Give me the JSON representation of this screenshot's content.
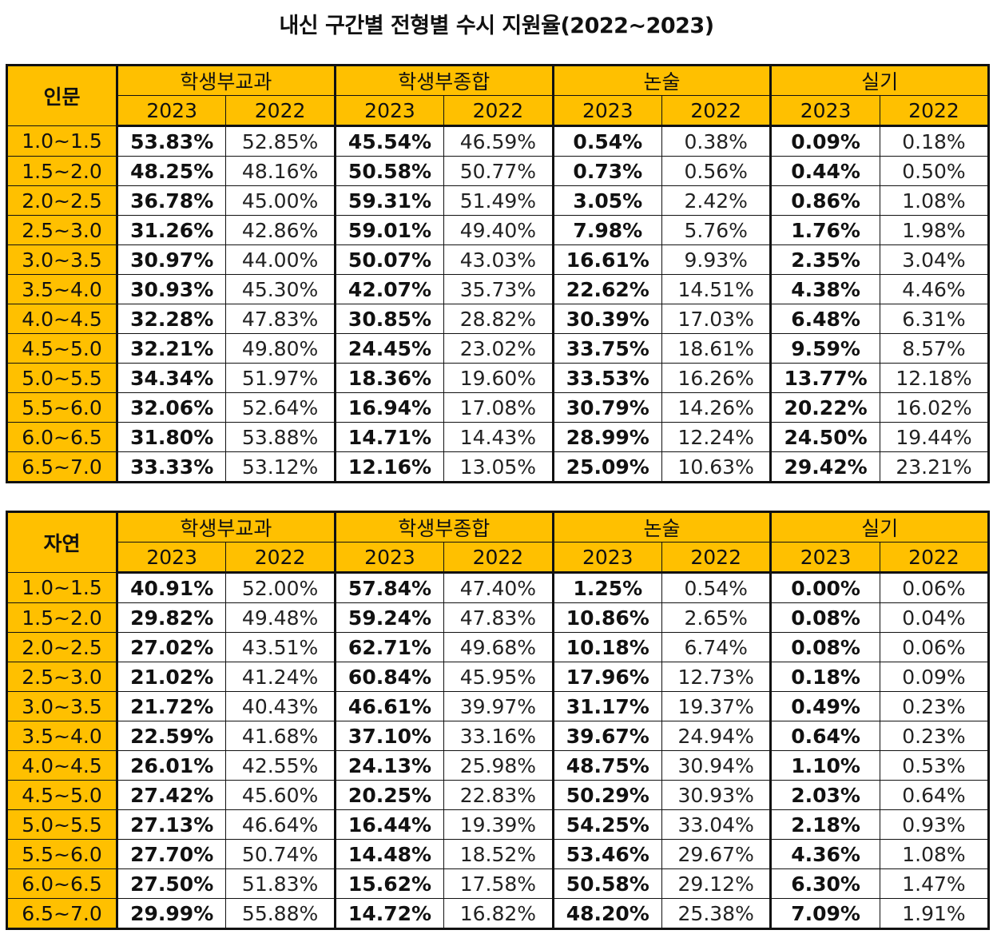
{
  "title": "내신 구간별 전형별 수시 지원율(2022~2023)",
  "colors": {
    "header": "#ffc000",
    "corner": "#92d050",
    "border": "#111111"
  },
  "chart_data": {
    "type": "table",
    "groups": [
      "학생부교과",
      "학생부종합",
      "논술",
      "실기"
    ],
    "years": [
      "2023",
      "2022"
    ],
    "tables": [
      {
        "label": "인문",
        "rows": [
          {
            "band": "1.0~1.5",
            "values": [
              "53.83%",
              "52.85%",
              "45.54%",
              "46.59%",
              "0.54%",
              "0.38%",
              "0.09%",
              "0.18%"
            ]
          },
          {
            "band": "1.5~2.0",
            "values": [
              "48.25%",
              "48.16%",
              "50.58%",
              "50.77%",
              "0.73%",
              "0.56%",
              "0.44%",
              "0.50%"
            ]
          },
          {
            "band": "2.0~2.5",
            "values": [
              "36.78%",
              "45.00%",
              "59.31%",
              "51.49%",
              "3.05%",
              "2.42%",
              "0.86%",
              "1.08%"
            ]
          },
          {
            "band": "2.5~3.0",
            "values": [
              "31.26%",
              "42.86%",
              "59.01%",
              "49.40%",
              "7.98%",
              "5.76%",
              "1.76%",
              "1.98%"
            ]
          },
          {
            "band": "3.0~3.5",
            "values": [
              "30.97%",
              "44.00%",
              "50.07%",
              "43.03%",
              "16.61%",
              "9.93%",
              "2.35%",
              "3.04%"
            ]
          },
          {
            "band": "3.5~4.0",
            "values": [
              "30.93%",
              "45.30%",
              "42.07%",
              "35.73%",
              "22.62%",
              "14.51%",
              "4.38%",
              "4.46%"
            ]
          },
          {
            "band": "4.0~4.5",
            "values": [
              "32.28%",
              "47.83%",
              "30.85%",
              "28.82%",
              "30.39%",
              "17.03%",
              "6.48%",
              "6.31%"
            ]
          },
          {
            "band": "4.5~5.0",
            "values": [
              "32.21%",
              "49.80%",
              "24.45%",
              "23.02%",
              "33.75%",
              "18.61%",
              "9.59%",
              "8.57%"
            ]
          },
          {
            "band": "5.0~5.5",
            "values": [
              "34.34%",
              "51.97%",
              "18.36%",
              "19.60%",
              "33.53%",
              "16.26%",
              "13.77%",
              "12.18%"
            ]
          },
          {
            "band": "5.5~6.0",
            "values": [
              "32.06%",
              "52.64%",
              "16.94%",
              "17.08%",
              "30.79%",
              "14.26%",
              "20.22%",
              "16.02%"
            ]
          },
          {
            "band": "6.0~6.5",
            "values": [
              "31.80%",
              "53.88%",
              "14.71%",
              "14.43%",
              "28.99%",
              "12.24%",
              "24.50%",
              "19.44%"
            ]
          },
          {
            "band": "6.5~7.0",
            "values": [
              "33.33%",
              "53.12%",
              "12.16%",
              "13.05%",
              "25.09%",
              "10.63%",
              "29.42%",
              "23.21%"
            ]
          }
        ]
      },
      {
        "label": "자연",
        "rows": [
          {
            "band": "1.0~1.5",
            "values": [
              "40.91%",
              "52.00%",
              "57.84%",
              "47.40%",
              "1.25%",
              "0.54%",
              "0.00%",
              "0.06%"
            ]
          },
          {
            "band": "1.5~2.0",
            "values": [
              "29.82%",
              "49.48%",
              "59.24%",
              "47.83%",
              "10.86%",
              "2.65%",
              "0.08%",
              "0.04%"
            ]
          },
          {
            "band": "2.0~2.5",
            "values": [
              "27.02%",
              "43.51%",
              "62.71%",
              "49.68%",
              "10.18%",
              "6.74%",
              "0.08%",
              "0.06%"
            ]
          },
          {
            "band": "2.5~3.0",
            "values": [
              "21.02%",
              "41.24%",
              "60.84%",
              "45.95%",
              "17.96%",
              "12.73%",
              "0.18%",
              "0.09%"
            ]
          },
          {
            "band": "3.0~3.5",
            "values": [
              "21.72%",
              "40.43%",
              "46.61%",
              "39.97%",
              "31.17%",
              "19.37%",
              "0.49%",
              "0.23%"
            ]
          },
          {
            "band": "3.5~4.0",
            "values": [
              "22.59%",
              "41.68%",
              "37.10%",
              "33.16%",
              "39.67%",
              "24.94%",
              "0.64%",
              "0.23%"
            ]
          },
          {
            "band": "4.0~4.5",
            "values": [
              "26.01%",
              "42.55%",
              "24.13%",
              "25.98%",
              "48.75%",
              "30.94%",
              "1.10%",
              "0.53%"
            ]
          },
          {
            "band": "4.5~5.0",
            "values": [
              "27.42%",
              "45.60%",
              "20.25%",
              "22.83%",
              "50.29%",
              "30.93%",
              "2.03%",
              "0.64%"
            ]
          },
          {
            "band": "5.0~5.5",
            "values": [
              "27.13%",
              "46.64%",
              "16.44%",
              "19.39%",
              "54.25%",
              "33.04%",
              "2.18%",
              "0.93%"
            ]
          },
          {
            "band": "5.5~6.0",
            "values": [
              "27.70%",
              "50.74%",
              "14.48%",
              "18.52%",
              "53.46%",
              "29.67%",
              "4.36%",
              "1.08%"
            ]
          },
          {
            "band": "6.0~6.5",
            "values": [
              "27.50%",
              "51.83%",
              "15.62%",
              "17.58%",
              "50.58%",
              "29.12%",
              "6.30%",
              "1.47%"
            ]
          },
          {
            "band": "6.5~7.0",
            "values": [
              "29.99%",
              "55.88%",
              "14.72%",
              "16.82%",
              "48.20%",
              "25.38%",
              "7.09%",
              "1.91%"
            ]
          }
        ]
      }
    ]
  }
}
